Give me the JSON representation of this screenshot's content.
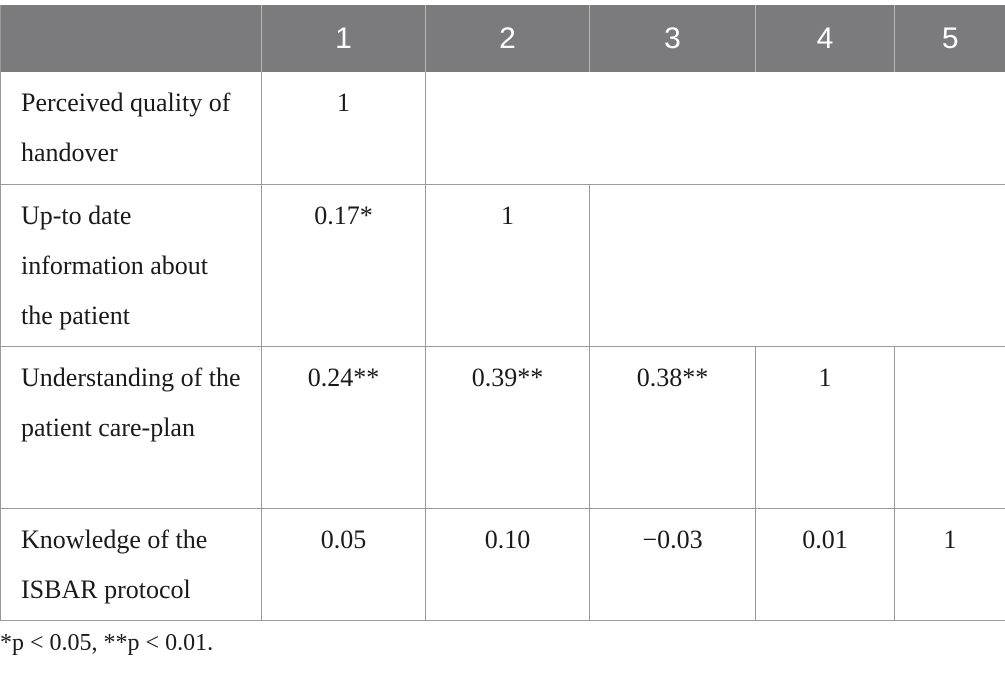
{
  "table": {
    "headers": [
      "",
      "1",
      "2",
      "3",
      "4",
      "5"
    ],
    "rows": [
      {
        "label": "Perceived quality of handover",
        "values": [
          "1"
        ]
      },
      {
        "label": "Up-to date information about the patient",
        "values": [
          "0.17*",
          "1"
        ]
      },
      {
        "label": "Understanding of the patient care-plan",
        "values": [
          "0.24**",
          "0.39**",
          "0.38**",
          "1"
        ]
      },
      {
        "label": "Knowledge of the ISBAR protocol",
        "values": [
          "0.05",
          "0.10",
          "−0.03",
          "0.01",
          "1"
        ]
      }
    ]
  },
  "footnote": "*p < 0.05, **p < 0.01."
}
